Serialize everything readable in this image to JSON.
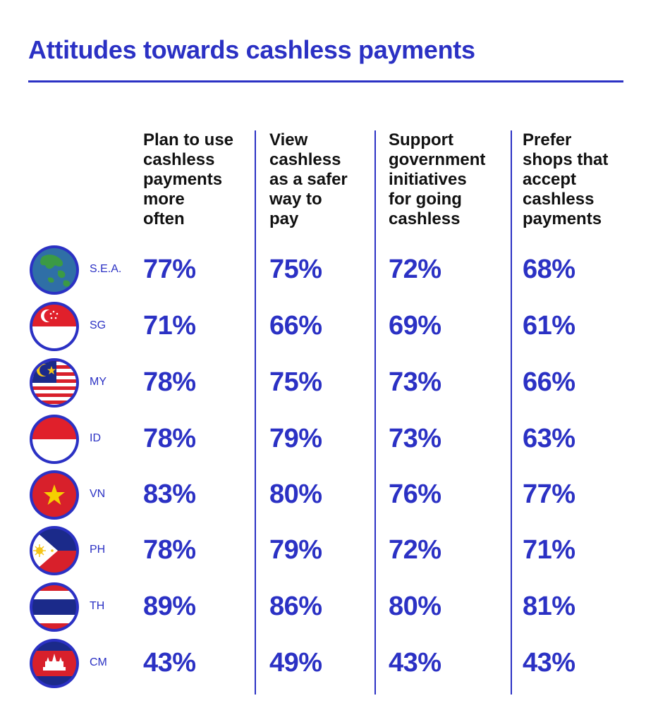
{
  "title": "Attitudes towards cashless payments",
  "colors": {
    "accent": "#2b31c4",
    "header_text": "#111111"
  },
  "chart_data": {
    "type": "table",
    "title": "Attitudes towards cashless payments",
    "columns": [
      {
        "lines": [
          "Plan to use",
          "cashless",
          "payments",
          "more",
          "often"
        ]
      },
      {
        "lines": [
          "View",
          "cashless",
          "as a safer",
          "way to",
          "pay"
        ]
      },
      {
        "lines": [
          "Support",
          "government",
          "initiatives",
          "for going",
          "cashless"
        ]
      },
      {
        "lines": [
          "Prefer",
          "shops that",
          "accept",
          "cashless",
          "payments"
        ]
      }
    ],
    "rows": [
      {
        "label": "S.E.A.",
        "flag": "globe-sea-icon",
        "values": [
          "77%",
          "75%",
          "72%",
          "68%"
        ]
      },
      {
        "label": "SG",
        "flag": "singapore-flag-icon",
        "values": [
          "71%",
          "66%",
          "69%",
          "61%"
        ]
      },
      {
        "label": "MY",
        "flag": "malaysia-flag-icon",
        "values": [
          "78%",
          "75%",
          "73%",
          "66%"
        ]
      },
      {
        "label": "ID",
        "flag": "indonesia-flag-icon",
        "values": [
          "78%",
          "79%",
          "73%",
          "63%"
        ]
      },
      {
        "label": "VN",
        "flag": "vietnam-flag-icon",
        "values": [
          "83%",
          "80%",
          "76%",
          "77%"
        ]
      },
      {
        "label": "PH",
        "flag": "philippines-flag-icon",
        "values": [
          "78%",
          "79%",
          "72%",
          "71%"
        ]
      },
      {
        "label": "TH",
        "flag": "thailand-flag-icon",
        "values": [
          "89%",
          "86%",
          "80%",
          "81%"
        ]
      },
      {
        "label": "CM",
        "flag": "cambodia-flag-icon",
        "values": [
          "43%",
          "49%",
          "43%",
          "43%"
        ]
      }
    ]
  }
}
